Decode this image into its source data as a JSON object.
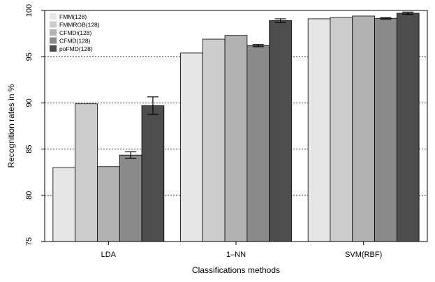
{
  "chart_data": {
    "type": "bar",
    "title": "",
    "xlabel": "Classifications methods",
    "ylabel": "Recognition rates in %",
    "ylim": [
      75,
      100
    ],
    "yticks": [
      75,
      80,
      85,
      90,
      95,
      100
    ],
    "grid": "horizontal dashed",
    "legend_position": "top-left",
    "categories": [
      "LDA",
      "1–NN",
      "SVM(RBF)"
    ],
    "series": [
      {
        "name": "FMM(128)",
        "color": "#e6e6e6",
        "values": [
          83.0,
          95.4,
          99.1
        ],
        "errors": [
          null,
          null,
          null
        ]
      },
      {
        "name": "FMMRGB(128)",
        "color": "#cccccc",
        "values": [
          89.9,
          96.9,
          99.25
        ],
        "errors": [
          null,
          null,
          null
        ]
      },
      {
        "name": "CFMDi(128)",
        "color": "#b3b3b3",
        "values": [
          83.1,
          97.3,
          99.4
        ],
        "errors": [
          null,
          null,
          null
        ]
      },
      {
        "name": "CFMD(128)",
        "color": "#8a8a8a",
        "values": [
          84.35,
          96.2,
          99.15
        ],
        "errors": [
          0.35,
          0.12,
          0.08
        ]
      },
      {
        "name": "poFMD(128)",
        "color": "#4d4d4d",
        "values": [
          89.7,
          98.9,
          99.7
        ],
        "errors": [
          0.95,
          0.2,
          0.12
        ]
      }
    ]
  }
}
